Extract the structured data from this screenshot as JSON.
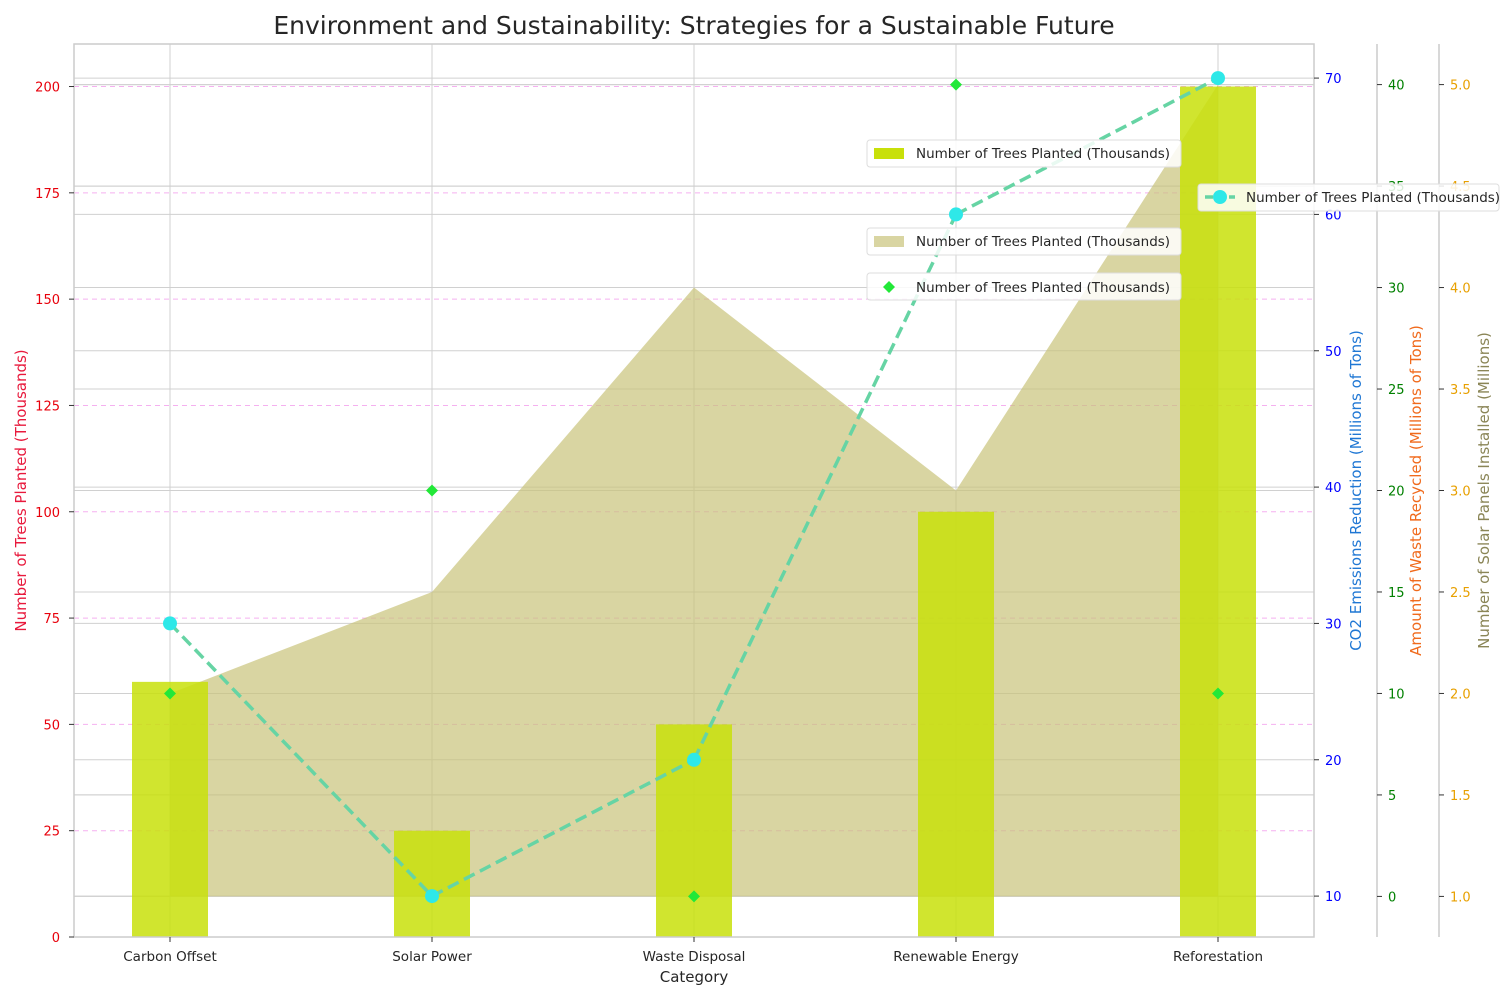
{
  "chart_data": {
    "type": "bar",
    "title": "Environment and Sustainability: Strategies for a Sustainable Future",
    "xlabel": "Category",
    "categories": [
      "Carbon Offset",
      "Solar Power",
      "Waste Disposal",
      "Renewable Energy",
      "Reforestation"
    ],
    "grid": true,
    "axes": [
      {
        "id": "trees",
        "label": "Number of Trees Planted (Thousands)",
        "ylim": [
          0,
          210
        ],
        "ticks": [
          0,
          25,
          50,
          75,
          100,
          125,
          150,
          175,
          200
        ],
        "color": "#e8193c"
      },
      {
        "id": "co2",
        "label": "CO2 Emissions Reduction (Millions of Tons)",
        "ylim": [
          7,
          72.5
        ],
        "ticks": [
          10,
          20,
          30,
          40,
          50,
          60,
          70
        ],
        "color": "#1f77d4"
      },
      {
        "id": "waste",
        "label": "Amount of Waste Recycled (Millions of Tons)",
        "ylim": [
          -2,
          42
        ],
        "ticks": [
          0,
          5,
          10,
          15,
          20,
          25,
          30,
          35,
          40
        ],
        "color": "#f06a1c"
      },
      {
        "id": "solar",
        "label": "Number of Solar Panels Installed (Millions)",
        "ylim": [
          0.8,
          5.2
        ],
        "ticks": [
          "1.0",
          "1.5",
          "2.0",
          "2.5",
          "3.0",
          "3.5",
          "4.0",
          "4.5",
          "5.0"
        ],
        "color": "#8a8556"
      }
    ],
    "series": [
      {
        "name": "Number of Trees Planted (Thousands)",
        "type": "bar",
        "axis": "trees",
        "values": [
          60,
          25,
          50,
          100,
          200
        ],
        "color": "#c8e00a"
      },
      {
        "name": "Number of Trees Planted (Thousands)",
        "type": "line",
        "axis": "co2",
        "values": [
          30,
          10,
          20,
          60,
          70
        ],
        "color": "#2ee8e8"
      },
      {
        "name": "Number of Trees Planted (Thousands)",
        "type": "scatter",
        "axis": "waste",
        "values": [
          10,
          20,
          0,
          40,
          10
        ],
        "color": "#22e838"
      },
      {
        "name": "Number of Trees Planted (Thousands)",
        "type": "area",
        "axis": "solar",
        "values": [
          2.0,
          2.5,
          4.0,
          3.0,
          5.0
        ],
        "color": "#c9c37a"
      }
    ],
    "legend_placement": "upper-right"
  }
}
